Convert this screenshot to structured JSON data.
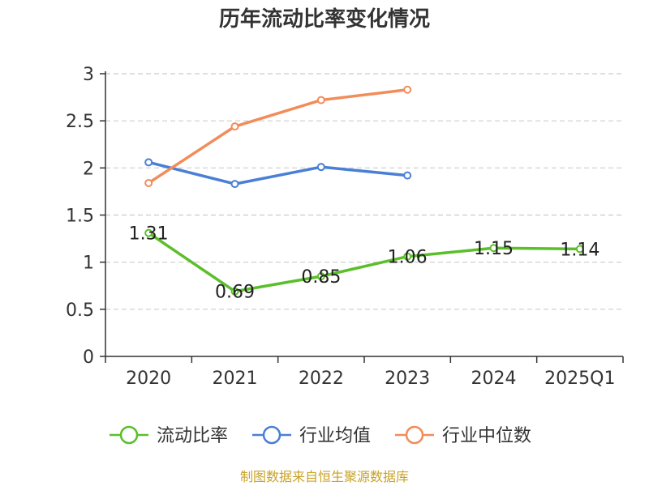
{
  "chart_data": {
    "type": "line",
    "title": "历年流动比率变化情况",
    "categories": [
      "2020",
      "2021",
      "2022",
      "2023",
      "2024",
      "2025Q1"
    ],
    "ylim": [
      0,
      3
    ],
    "yticks": [
      "0",
      "0.5",
      "1",
      "1.5",
      "2",
      "2.5",
      "3"
    ],
    "grid": true,
    "legend_position": "bottom",
    "series": [
      {
        "name": "流动比率",
        "color": "#5bbf2a",
        "values": [
          1.31,
          0.69,
          0.85,
          1.06,
          1.15,
          1.14
        ],
        "labels": [
          "1.31",
          "0.69",
          "0.85",
          "1.06",
          "1.15",
          "1.14"
        ]
      },
      {
        "name": "行业均值",
        "color": "#4a7fd6",
        "values": [
          2.06,
          1.83,
          2.01,
          1.92,
          null,
          null
        ]
      },
      {
        "name": "行业中位数",
        "color": "#f28c5a",
        "values": [
          1.84,
          2.44,
          2.72,
          2.83,
          null,
          null
        ]
      }
    ]
  },
  "footer": {
    "source": "制图数据来自恒生聚源数据库"
  }
}
